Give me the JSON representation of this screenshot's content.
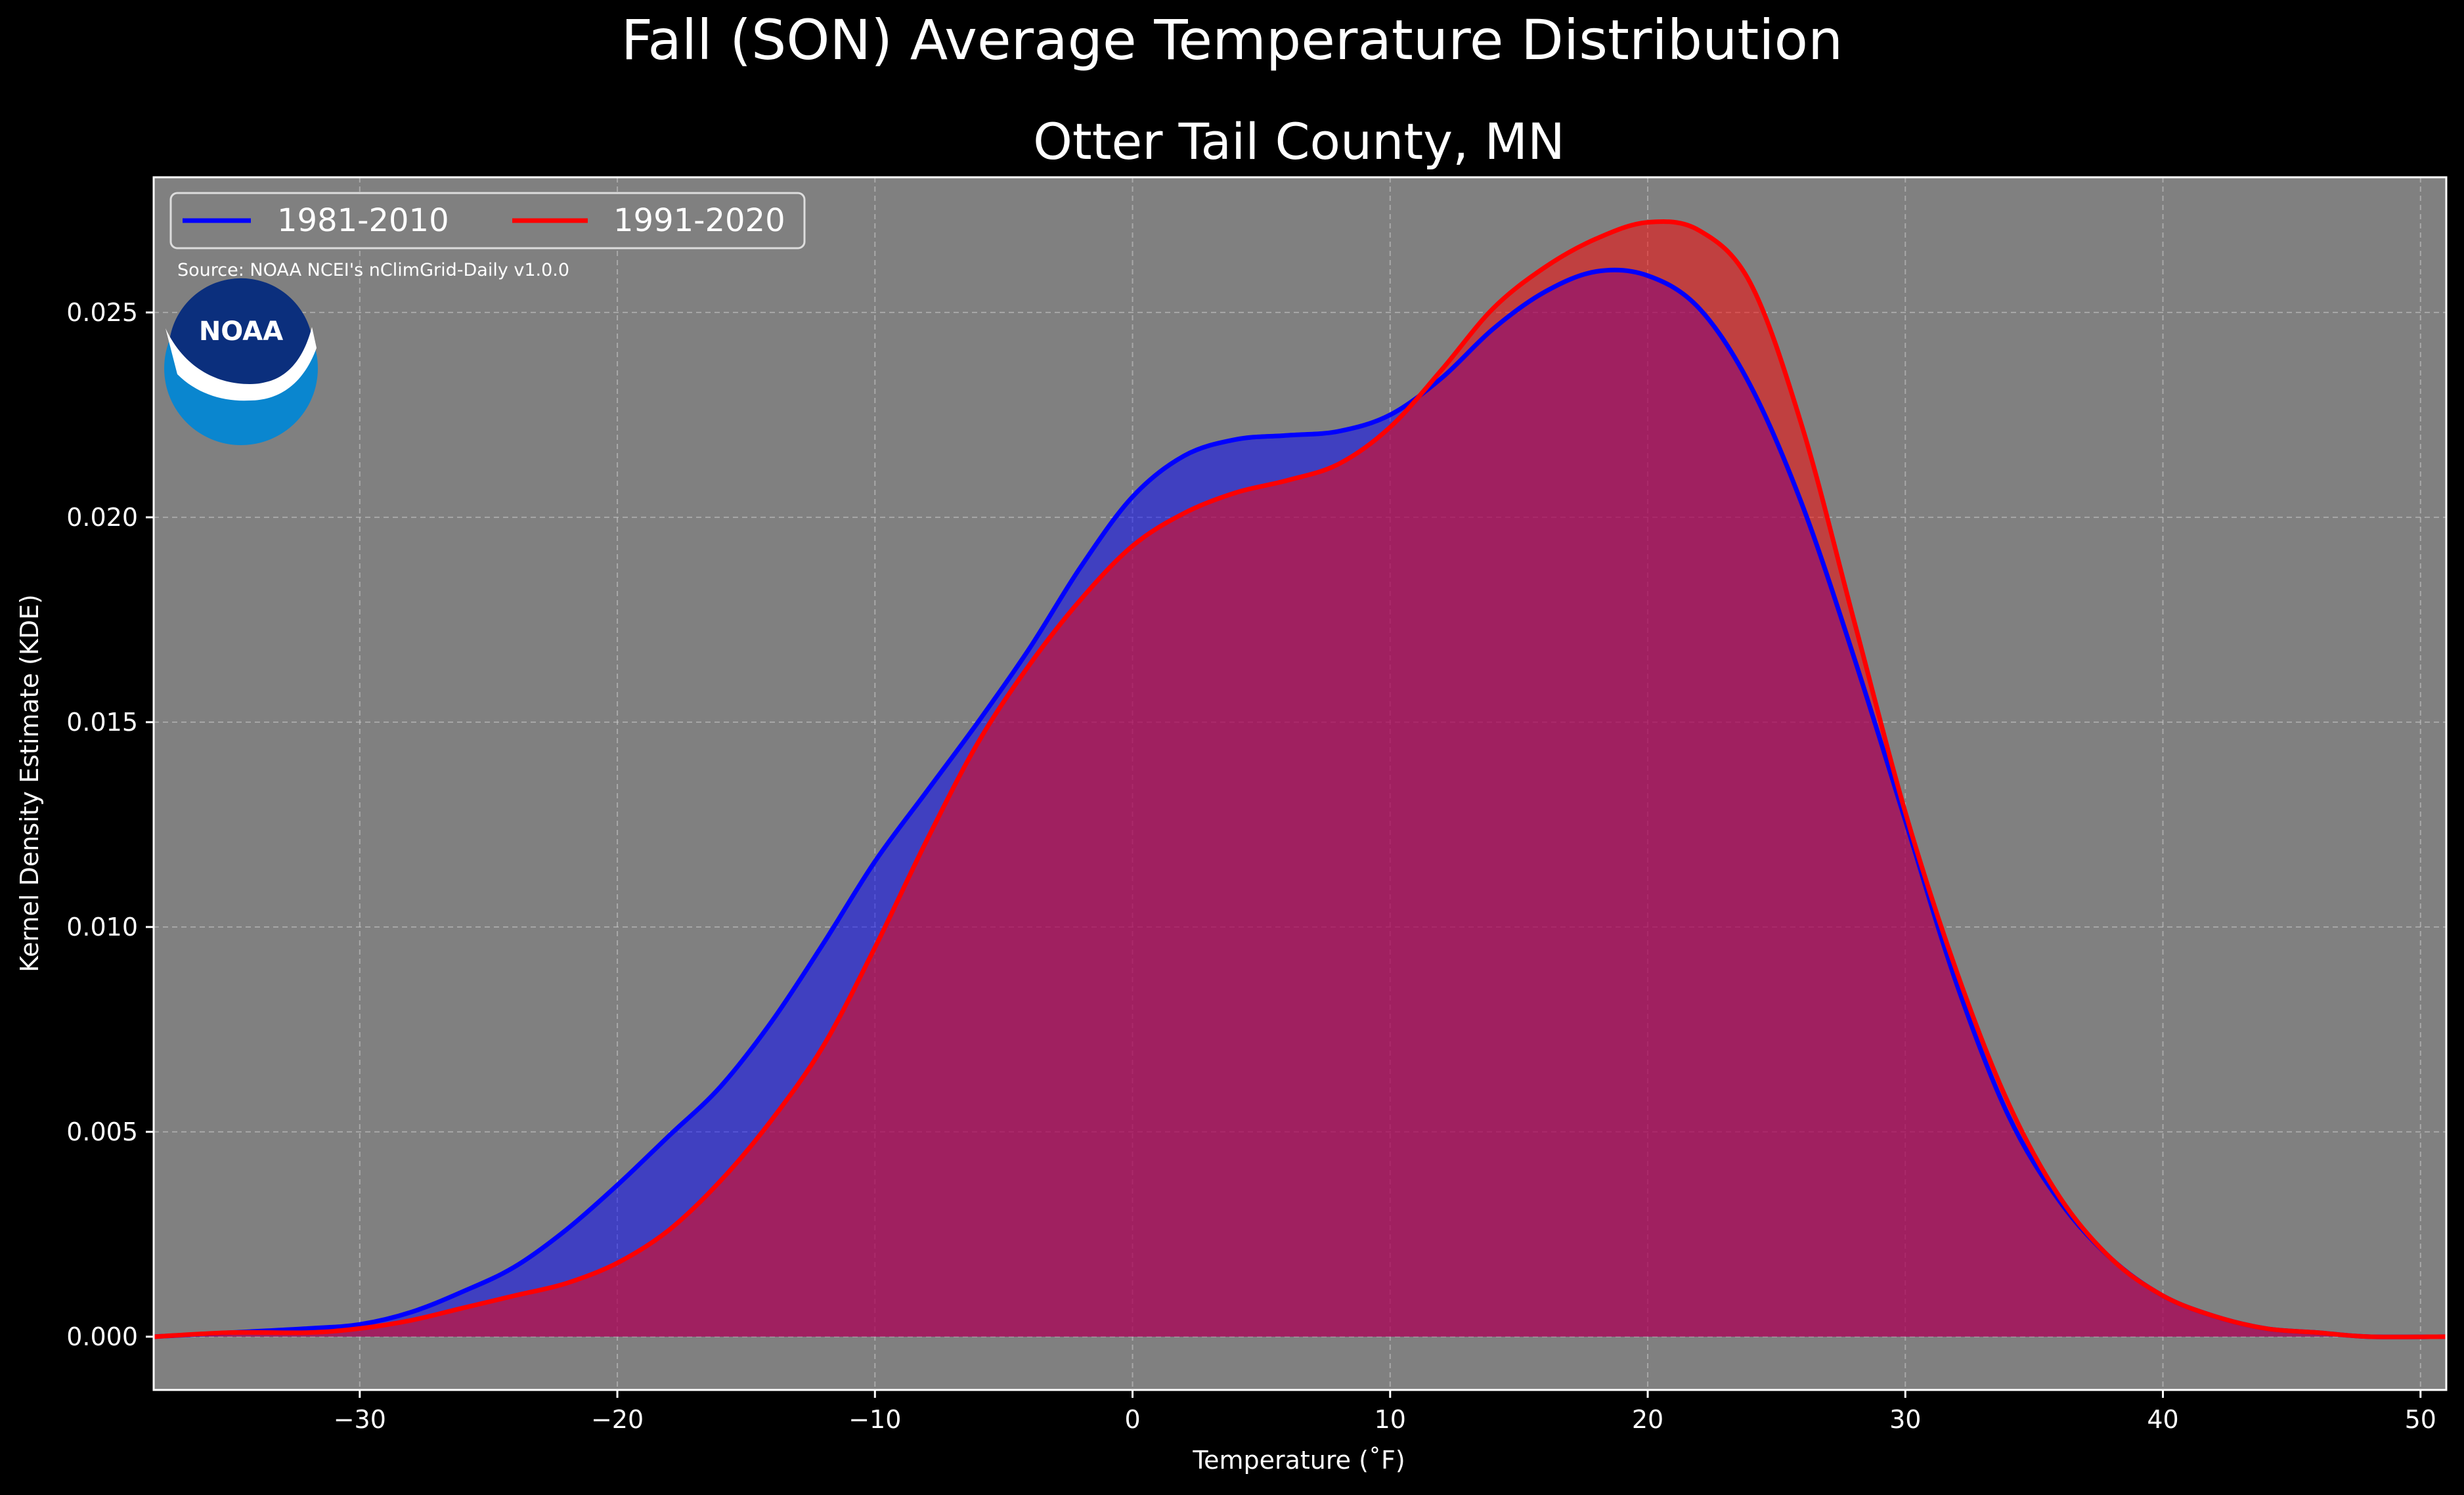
{
  "chart_data": {
    "type": "area",
    "title": "Fall (SON) Average Temperature Distribution",
    "subtitle": "Otter Tail County, MN",
    "xlabel": "Temperature (˚F)",
    "ylabel": "Kernel Density Estimate (KDE)",
    "xlim": [
      -38,
      51
    ],
    "ylim": [
      -0.0013,
      0.0283
    ],
    "x_ticks": [
      -30,
      -20,
      -10,
      0,
      10,
      20,
      30,
      40,
      50
    ],
    "x_tick_labels": [
      "−30",
      "−20",
      "−10",
      "0",
      "10",
      "20",
      "30",
      "40",
      "50"
    ],
    "y_ticks": [
      0.0,
      0.005,
      0.01,
      0.015,
      0.02,
      0.025
    ],
    "y_tick_labels": [
      "0.000",
      "0.005",
      "0.010",
      "0.015",
      "0.020",
      "0.025"
    ],
    "grid": true,
    "background_color": "#808080",
    "legend_position": "upper-left",
    "annotation": "Source: NOAA NCEI's nClimGrid-Daily v1.0.0",
    "logo_text": "NOAA",
    "series": [
      {
        "name": "1981-2010",
        "color": "#0000ff",
        "x": [
          -38,
          -35,
          -32,
          -30,
          -28,
          -26,
          -24,
          -22,
          -20,
          -18,
          -16,
          -14,
          -12,
          -10,
          -8,
          -6,
          -4,
          -2,
          0,
          2,
          4,
          6,
          8,
          10,
          12,
          14,
          16,
          18,
          20,
          22,
          24,
          26,
          28,
          30,
          32,
          34,
          36,
          38,
          40,
          42,
          44,
          46,
          48,
          51
        ],
        "values": [
          0.0,
          0.0001,
          0.0002,
          0.0003,
          0.0006,
          0.0011,
          0.0017,
          0.0026,
          0.0037,
          0.0049,
          0.0061,
          0.0077,
          0.0096,
          0.0116,
          0.0133,
          0.015,
          0.0168,
          0.0188,
          0.0205,
          0.0215,
          0.0219,
          0.022,
          0.0221,
          0.0225,
          0.0234,
          0.0246,
          0.0255,
          0.026,
          0.0259,
          0.0251,
          0.0232,
          0.0203,
          0.0166,
          0.0126,
          0.0086,
          0.0054,
          0.0033,
          0.0019,
          0.001,
          0.0005,
          0.0002,
          0.0001,
          0.0,
          0.0
        ]
      },
      {
        "name": "1991-2020",
        "color": "#ff0000",
        "x": [
          -38,
          -35,
          -32,
          -30,
          -28,
          -26,
          -24,
          -22,
          -20,
          -18,
          -16,
          -14,
          -12,
          -10,
          -8,
          -6,
          -4,
          -2,
          0,
          2,
          4,
          6,
          8,
          10,
          12,
          14,
          16,
          18,
          20,
          22,
          24,
          26,
          28,
          30,
          32,
          34,
          36,
          38,
          40,
          42,
          44,
          46,
          48,
          51
        ],
        "values": [
          0.0,
          0.0001,
          0.0001,
          0.0002,
          0.0004,
          0.0007,
          0.001,
          0.0013,
          0.0018,
          0.0026,
          0.0038,
          0.0053,
          0.0071,
          0.0095,
          0.0121,
          0.0145,
          0.0164,
          0.018,
          0.0193,
          0.0201,
          0.0206,
          0.0209,
          0.0213,
          0.0222,
          0.0236,
          0.0251,
          0.0261,
          0.0268,
          0.0272,
          0.027,
          0.0257,
          0.0222,
          0.0175,
          0.0128,
          0.0089,
          0.0057,
          0.0034,
          0.0019,
          0.001,
          0.0005,
          0.0002,
          0.0001,
          0.0,
          0.0
        ]
      }
    ]
  }
}
